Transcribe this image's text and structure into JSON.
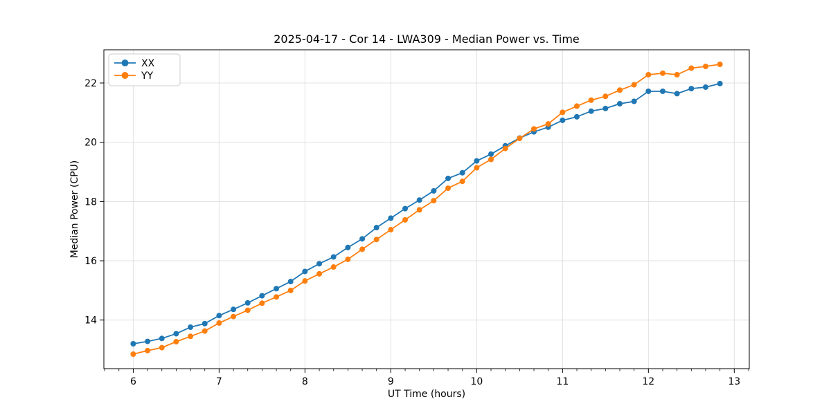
{
  "figure": {
    "title": "2025-04-17 - Cor 14 - LWA309 - Median Power vs. Time"
  },
  "chart_data": {
    "type": "line",
    "title": "2025-04-17 - Cor 14 - LWA309 - Median Power vs. Time",
    "xlabel": "UT Time (hours)",
    "ylabel": "Median Power (CPU)",
    "x": [
      6.0,
      6.1667,
      6.3333,
      6.5,
      6.6667,
      6.8333,
      7.0,
      7.1667,
      7.3333,
      7.5,
      7.6667,
      7.8333,
      8.0,
      8.1667,
      8.3333,
      8.5,
      8.6667,
      8.8333,
      9.0,
      9.1667,
      9.3333,
      9.5,
      9.6667,
      9.8333,
      10.0,
      10.1667,
      10.3333,
      10.5,
      10.6667,
      10.8333,
      11.0,
      11.1667,
      11.3333,
      11.5,
      11.6667,
      11.8333,
      12.0,
      12.1667,
      12.3333,
      12.5,
      12.6667,
      12.8333
    ],
    "series": [
      {
        "name": "XX",
        "color": "#1f77b4",
        "values": [
          13.2,
          13.28,
          13.38,
          13.54,
          13.76,
          13.88,
          14.15,
          14.36,
          14.58,
          14.82,
          15.06,
          15.3,
          15.64,
          15.9,
          16.13,
          16.45,
          16.74,
          17.12,
          17.44,
          17.76,
          18.05,
          18.36,
          18.78,
          18.97,
          19.37,
          19.6,
          19.88,
          20.14,
          20.35,
          20.51,
          20.74,
          20.86,
          21.05,
          21.14,
          21.3,
          21.38,
          21.72,
          21.72,
          21.64,
          21.81,
          21.86,
          21.98
        ]
      },
      {
        "name": "YY",
        "color": "#ff7f0e",
        "values": [
          12.85,
          12.97,
          13.07,
          13.27,
          13.45,
          13.63,
          13.9,
          14.12,
          14.33,
          14.57,
          14.78,
          15.0,
          15.32,
          15.56,
          15.79,
          16.05,
          16.39,
          16.72,
          17.05,
          17.38,
          17.72,
          18.03,
          18.45,
          18.68,
          19.14,
          19.42,
          19.79,
          20.13,
          20.45,
          20.62,
          21.01,
          21.22,
          21.42,
          21.55,
          21.76,
          21.94,
          22.28,
          22.33,
          22.28,
          22.5,
          22.56,
          22.63
        ]
      }
    ],
    "xticks": [
      6,
      7,
      8,
      9,
      10,
      11,
      12,
      13
    ],
    "yticks": [
      14,
      16,
      18,
      20,
      22
    ],
    "xlim": [
      5.658,
      13.175
    ],
    "ylim": [
      12.36,
      23.12
    ],
    "x_minor_step": 0.16667,
    "grid": true,
    "grid_color": "#e0e0e0",
    "background": "#ffffff",
    "frame_color": "#000000",
    "legend": {
      "position": "upper-left",
      "entries": [
        "XX",
        "YY"
      ]
    }
  }
}
